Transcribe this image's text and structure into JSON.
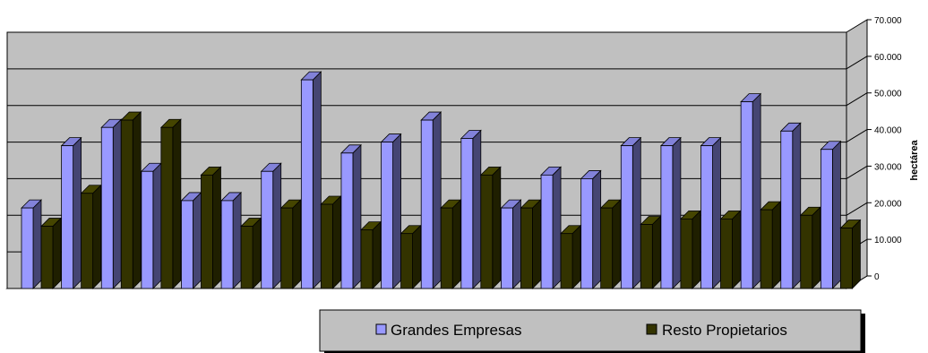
{
  "chart_data": {
    "type": "bar",
    "ylabel": "hectárea",
    "ylim": [
      0,
      70000
    ],
    "yticks": [
      "0",
      "10.000",
      "20.000",
      "30.000",
      "40.000",
      "50.000",
      "60.000",
      "70.000"
    ],
    "grid": true,
    "legend_position": "bottom-right",
    "series": [
      {
        "name": "Grandes Empresas",
        "color": "#9999ff",
        "values": [
          22000,
          39000,
          44000,
          32000,
          24000,
          24000,
          32000,
          57000,
          37000,
          40000,
          46000,
          41000,
          22000,
          31000,
          30000,
          39000,
          39000,
          39000,
          51000,
          43000,
          38000
        ]
      },
      {
        "name": "Resto Propietarios",
        "color": "#333300",
        "values": [
          17000,
          26000,
          46000,
          44000,
          31000,
          17000,
          22000,
          23000,
          16000,
          15000,
          22000,
          31000,
          22000,
          15000,
          22000,
          17500,
          19000,
          19000,
          21500,
          20000,
          16500
        ]
      }
    ]
  }
}
